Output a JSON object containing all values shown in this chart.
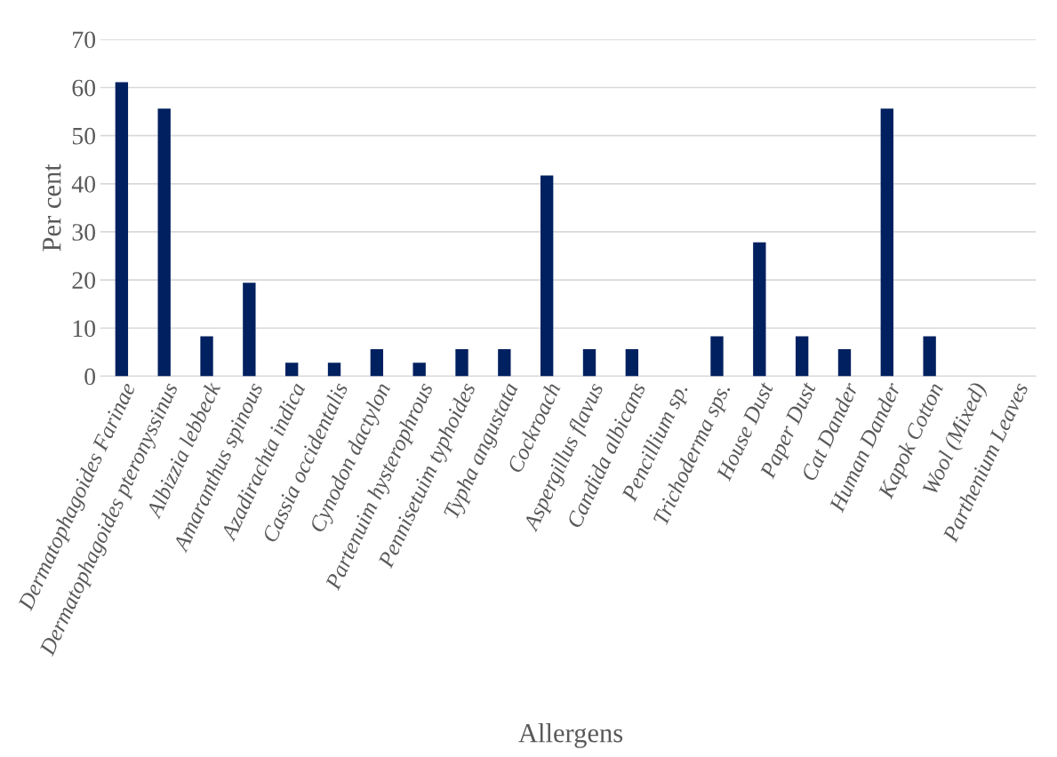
{
  "chart_data": {
    "type": "bar",
    "xlabel": "Allergens",
    "ylabel": "Per cent",
    "categories": [
      "Dermatophagoides Farinae",
      "Dermatophagoides pteronyssinus",
      "Albizzia lebbeck",
      "Amaranthus spinous",
      "Azadirachta indica",
      "Cassia occidentalis",
      "Cynodon dactylon",
      "Partenuim hysterophrous",
      "Pennisetuim typhoides",
      "Typha angustata",
      "Cockroach",
      "Aspergillus flavus",
      "Candida albicans",
      "Pencillium sp.",
      "Trichoderma sps.",
      "House Dust",
      "Paper Dust",
      "Cat Dander",
      "Human Dander",
      "Kapok Cotton",
      "Wool (Mixed)",
      "Parthenium Leaves"
    ],
    "values": [
      61.1,
      55.6,
      8.3,
      19.4,
      2.8,
      2.8,
      5.6,
      2.8,
      5.6,
      5.6,
      41.7,
      5.6,
      5.6,
      0,
      8.3,
      27.8,
      8.3,
      5.6,
      55.6,
      8.3,
      0,
      0
    ],
    "color": "#002060",
    "ylim": [
      0,
      70
    ],
    "yticks": [
      0,
      10,
      20,
      30,
      40,
      50,
      60,
      70
    ],
    "grid": "y",
    "legend": false
  }
}
